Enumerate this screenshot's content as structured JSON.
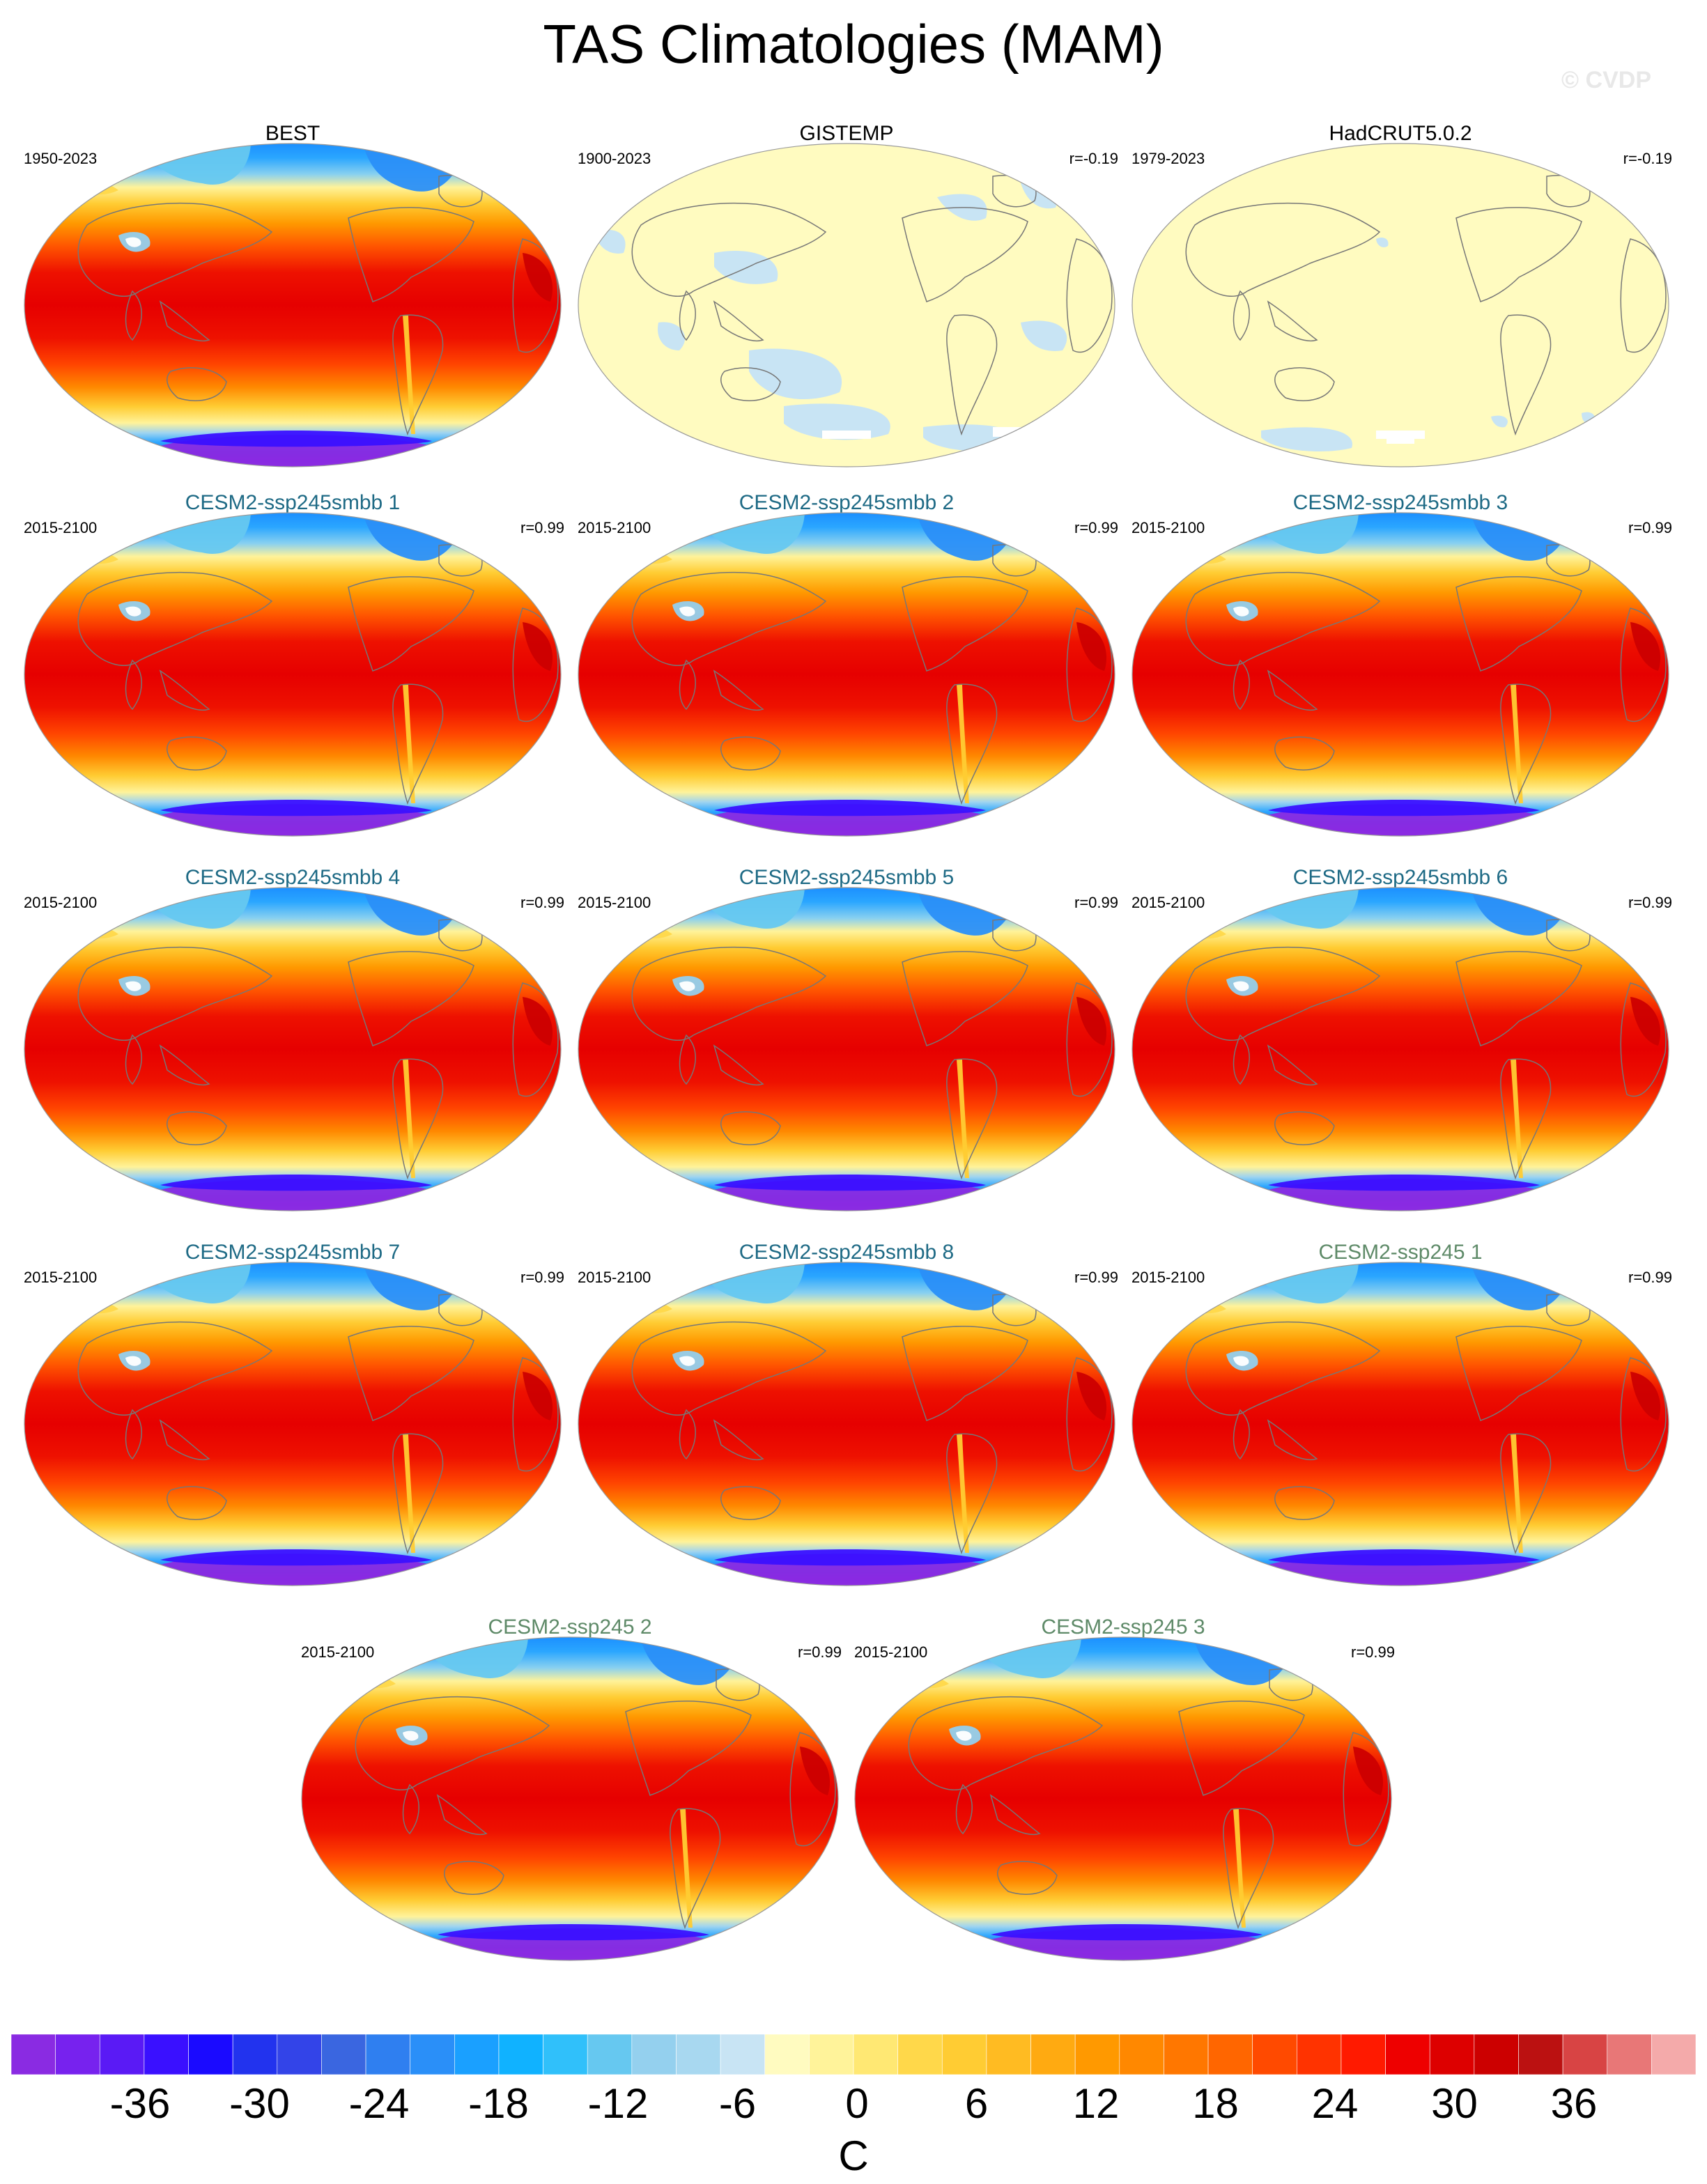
{
  "title": "TAS Climatologies (MAM)",
  "watermark": "© CVDP",
  "panels": [
    {
      "id": "p1",
      "title": "BEST",
      "title_color": "obs",
      "period": "1950-2023",
      "corr": "",
      "style": "full"
    },
    {
      "id": "p2",
      "title": "GISTEMP",
      "title_color": "obs",
      "period": "1900-2023",
      "corr": "r=-0.19",
      "style": "pale"
    },
    {
      "id": "p3",
      "title": "HadCRUT5.0.2",
      "title_color": "obs",
      "period": "1979-2023",
      "corr": "r=-0.19",
      "style": "pale"
    },
    {
      "id": "p4",
      "title": "CESM2-ssp245smbb 1",
      "title_color": "smbb",
      "period": "2015-2100",
      "corr": "r=0.99",
      "style": "full"
    },
    {
      "id": "p5",
      "title": "CESM2-ssp245smbb 2",
      "title_color": "smbb",
      "period": "2015-2100",
      "corr": "r=0.99",
      "style": "full"
    },
    {
      "id": "p6",
      "title": "CESM2-ssp245smbb 3",
      "title_color": "smbb",
      "period": "2015-2100",
      "corr": "r=0.99",
      "style": "full"
    },
    {
      "id": "p7",
      "title": "CESM2-ssp245smbb 4",
      "title_color": "smbb",
      "period": "2015-2100",
      "corr": "r=0.99",
      "style": "full"
    },
    {
      "id": "p8",
      "title": "CESM2-ssp245smbb 5",
      "title_color": "smbb",
      "period": "2015-2100",
      "corr": "r=0.99",
      "style": "full"
    },
    {
      "id": "p9",
      "title": "CESM2-ssp245smbb 6",
      "title_color": "smbb",
      "period": "2015-2100",
      "corr": "r=0.99",
      "style": "full"
    },
    {
      "id": "p10",
      "title": "CESM2-ssp245smbb 7",
      "title_color": "smbb",
      "period": "2015-2100",
      "corr": "r=0.99",
      "style": "full"
    },
    {
      "id": "p11",
      "title": "CESM2-ssp245smbb 8",
      "title_color": "smbb",
      "period": "2015-2100",
      "corr": "r=0.99",
      "style": "full"
    },
    {
      "id": "p12",
      "title": "CESM2-ssp245 1",
      "title_color": "ssp",
      "period": "2015-2100",
      "corr": "r=0.99",
      "style": "full"
    },
    {
      "id": "p13",
      "title": "CESM2-ssp245 2",
      "title_color": "ssp",
      "period": "2015-2100",
      "corr": "r=0.99",
      "style": "full"
    },
    {
      "id": "p14",
      "title": "CESM2-ssp245 3",
      "title_color": "ssp",
      "period": "2015-2100",
      "corr": "r=0.99",
      "style": "full"
    }
  ],
  "colorbar": {
    "unit": "C",
    "ticks": [
      "-36",
      "-30",
      "-24",
      "-18",
      "-12",
      "-6",
      "0",
      "6",
      "12",
      "18",
      "24",
      "30",
      "36"
    ],
    "colors": [
      "#8a2be2",
      "#7722ee",
      "#5a1af5",
      "#3a10ff",
      "#1a0aff",
      "#2233ee",
      "#3344e8",
      "#3a66e0",
      "#2f7ff0",
      "#2a8ff8",
      "#1aa0ff",
      "#10b2ff",
      "#30c0fa",
      "#66c8f0",
      "#94d0ee",
      "#a8d8f0",
      "#c8e4f4",
      "#fffbc0",
      "#fff39a",
      "#ffe873",
      "#ffd84a",
      "#ffcc33",
      "#ffbb22",
      "#ffaa11",
      "#ff9900",
      "#ff8800",
      "#ff7700",
      "#ff6600",
      "#ff4a00",
      "#ff3300",
      "#ff1a00",
      "#ee0000",
      "#dd0000",
      "#cc0000",
      "#bb1111",
      "#d84444",
      "#e87777",
      "#f4aaaa"
    ]
  }
}
